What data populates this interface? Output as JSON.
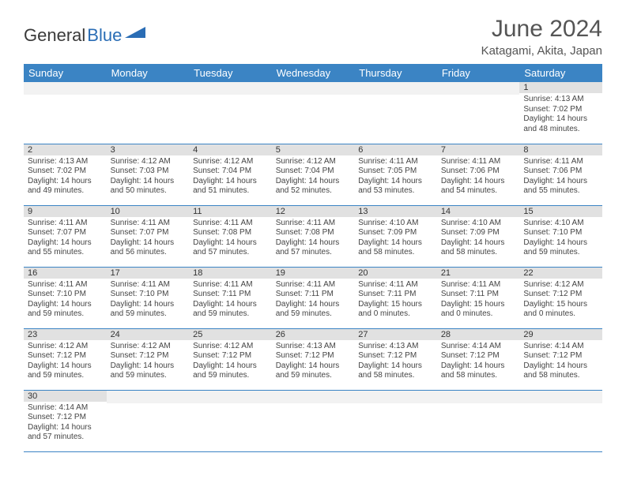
{
  "logo": {
    "word1": "General",
    "word2": "Blue"
  },
  "title": "June 2024",
  "location": "Katagami, Akita, Japan",
  "colors": {
    "header_bg": "#3b84c4",
    "header_text": "#ffffff",
    "daynum_bg": "#e1e1e1",
    "rule": "#3b84c4",
    "text": "#444444"
  },
  "weekdays": [
    "Sunday",
    "Monday",
    "Tuesday",
    "Wednesday",
    "Thursday",
    "Friday",
    "Saturday"
  ],
  "weeks": [
    [
      {
        "n": "",
        "sr": "",
        "ss": "",
        "dl": ""
      },
      {
        "n": "",
        "sr": "",
        "ss": "",
        "dl": ""
      },
      {
        "n": "",
        "sr": "",
        "ss": "",
        "dl": ""
      },
      {
        "n": "",
        "sr": "",
        "ss": "",
        "dl": ""
      },
      {
        "n": "",
        "sr": "",
        "ss": "",
        "dl": ""
      },
      {
        "n": "",
        "sr": "",
        "ss": "",
        "dl": ""
      },
      {
        "n": "1",
        "sr": "Sunrise: 4:13 AM",
        "ss": "Sunset: 7:02 PM",
        "dl": "Daylight: 14 hours and 48 minutes."
      }
    ],
    [
      {
        "n": "2",
        "sr": "Sunrise: 4:13 AM",
        "ss": "Sunset: 7:02 PM",
        "dl": "Daylight: 14 hours and 49 minutes."
      },
      {
        "n": "3",
        "sr": "Sunrise: 4:12 AM",
        "ss": "Sunset: 7:03 PM",
        "dl": "Daylight: 14 hours and 50 minutes."
      },
      {
        "n": "4",
        "sr": "Sunrise: 4:12 AM",
        "ss": "Sunset: 7:04 PM",
        "dl": "Daylight: 14 hours and 51 minutes."
      },
      {
        "n": "5",
        "sr": "Sunrise: 4:12 AM",
        "ss": "Sunset: 7:04 PM",
        "dl": "Daylight: 14 hours and 52 minutes."
      },
      {
        "n": "6",
        "sr": "Sunrise: 4:11 AM",
        "ss": "Sunset: 7:05 PM",
        "dl": "Daylight: 14 hours and 53 minutes."
      },
      {
        "n": "7",
        "sr": "Sunrise: 4:11 AM",
        "ss": "Sunset: 7:06 PM",
        "dl": "Daylight: 14 hours and 54 minutes."
      },
      {
        "n": "8",
        "sr": "Sunrise: 4:11 AM",
        "ss": "Sunset: 7:06 PM",
        "dl": "Daylight: 14 hours and 55 minutes."
      }
    ],
    [
      {
        "n": "9",
        "sr": "Sunrise: 4:11 AM",
        "ss": "Sunset: 7:07 PM",
        "dl": "Daylight: 14 hours and 55 minutes."
      },
      {
        "n": "10",
        "sr": "Sunrise: 4:11 AM",
        "ss": "Sunset: 7:07 PM",
        "dl": "Daylight: 14 hours and 56 minutes."
      },
      {
        "n": "11",
        "sr": "Sunrise: 4:11 AM",
        "ss": "Sunset: 7:08 PM",
        "dl": "Daylight: 14 hours and 57 minutes."
      },
      {
        "n": "12",
        "sr": "Sunrise: 4:11 AM",
        "ss": "Sunset: 7:08 PM",
        "dl": "Daylight: 14 hours and 57 minutes."
      },
      {
        "n": "13",
        "sr": "Sunrise: 4:10 AM",
        "ss": "Sunset: 7:09 PM",
        "dl": "Daylight: 14 hours and 58 minutes."
      },
      {
        "n": "14",
        "sr": "Sunrise: 4:10 AM",
        "ss": "Sunset: 7:09 PM",
        "dl": "Daylight: 14 hours and 58 minutes."
      },
      {
        "n": "15",
        "sr": "Sunrise: 4:10 AM",
        "ss": "Sunset: 7:10 PM",
        "dl": "Daylight: 14 hours and 59 minutes."
      }
    ],
    [
      {
        "n": "16",
        "sr": "Sunrise: 4:11 AM",
        "ss": "Sunset: 7:10 PM",
        "dl": "Daylight: 14 hours and 59 minutes."
      },
      {
        "n": "17",
        "sr": "Sunrise: 4:11 AM",
        "ss": "Sunset: 7:10 PM",
        "dl": "Daylight: 14 hours and 59 minutes."
      },
      {
        "n": "18",
        "sr": "Sunrise: 4:11 AM",
        "ss": "Sunset: 7:11 PM",
        "dl": "Daylight: 14 hours and 59 minutes."
      },
      {
        "n": "19",
        "sr": "Sunrise: 4:11 AM",
        "ss": "Sunset: 7:11 PM",
        "dl": "Daylight: 14 hours and 59 minutes."
      },
      {
        "n": "20",
        "sr": "Sunrise: 4:11 AM",
        "ss": "Sunset: 7:11 PM",
        "dl": "Daylight: 15 hours and 0 minutes."
      },
      {
        "n": "21",
        "sr": "Sunrise: 4:11 AM",
        "ss": "Sunset: 7:11 PM",
        "dl": "Daylight: 15 hours and 0 minutes."
      },
      {
        "n": "22",
        "sr": "Sunrise: 4:12 AM",
        "ss": "Sunset: 7:12 PM",
        "dl": "Daylight: 15 hours and 0 minutes."
      }
    ],
    [
      {
        "n": "23",
        "sr": "Sunrise: 4:12 AM",
        "ss": "Sunset: 7:12 PM",
        "dl": "Daylight: 14 hours and 59 minutes."
      },
      {
        "n": "24",
        "sr": "Sunrise: 4:12 AM",
        "ss": "Sunset: 7:12 PM",
        "dl": "Daylight: 14 hours and 59 minutes."
      },
      {
        "n": "25",
        "sr": "Sunrise: 4:12 AM",
        "ss": "Sunset: 7:12 PM",
        "dl": "Daylight: 14 hours and 59 minutes."
      },
      {
        "n": "26",
        "sr": "Sunrise: 4:13 AM",
        "ss": "Sunset: 7:12 PM",
        "dl": "Daylight: 14 hours and 59 minutes."
      },
      {
        "n": "27",
        "sr": "Sunrise: 4:13 AM",
        "ss": "Sunset: 7:12 PM",
        "dl": "Daylight: 14 hours and 58 minutes."
      },
      {
        "n": "28",
        "sr": "Sunrise: 4:14 AM",
        "ss": "Sunset: 7:12 PM",
        "dl": "Daylight: 14 hours and 58 minutes."
      },
      {
        "n": "29",
        "sr": "Sunrise: 4:14 AM",
        "ss": "Sunset: 7:12 PM",
        "dl": "Daylight: 14 hours and 58 minutes."
      }
    ],
    [
      {
        "n": "30",
        "sr": "Sunrise: 4:14 AM",
        "ss": "Sunset: 7:12 PM",
        "dl": "Daylight: 14 hours and 57 minutes."
      },
      {
        "n": "",
        "sr": "",
        "ss": "",
        "dl": ""
      },
      {
        "n": "",
        "sr": "",
        "ss": "",
        "dl": ""
      },
      {
        "n": "",
        "sr": "",
        "ss": "",
        "dl": ""
      },
      {
        "n": "",
        "sr": "",
        "ss": "",
        "dl": ""
      },
      {
        "n": "",
        "sr": "",
        "ss": "",
        "dl": ""
      },
      {
        "n": "",
        "sr": "",
        "ss": "",
        "dl": ""
      }
    ]
  ]
}
